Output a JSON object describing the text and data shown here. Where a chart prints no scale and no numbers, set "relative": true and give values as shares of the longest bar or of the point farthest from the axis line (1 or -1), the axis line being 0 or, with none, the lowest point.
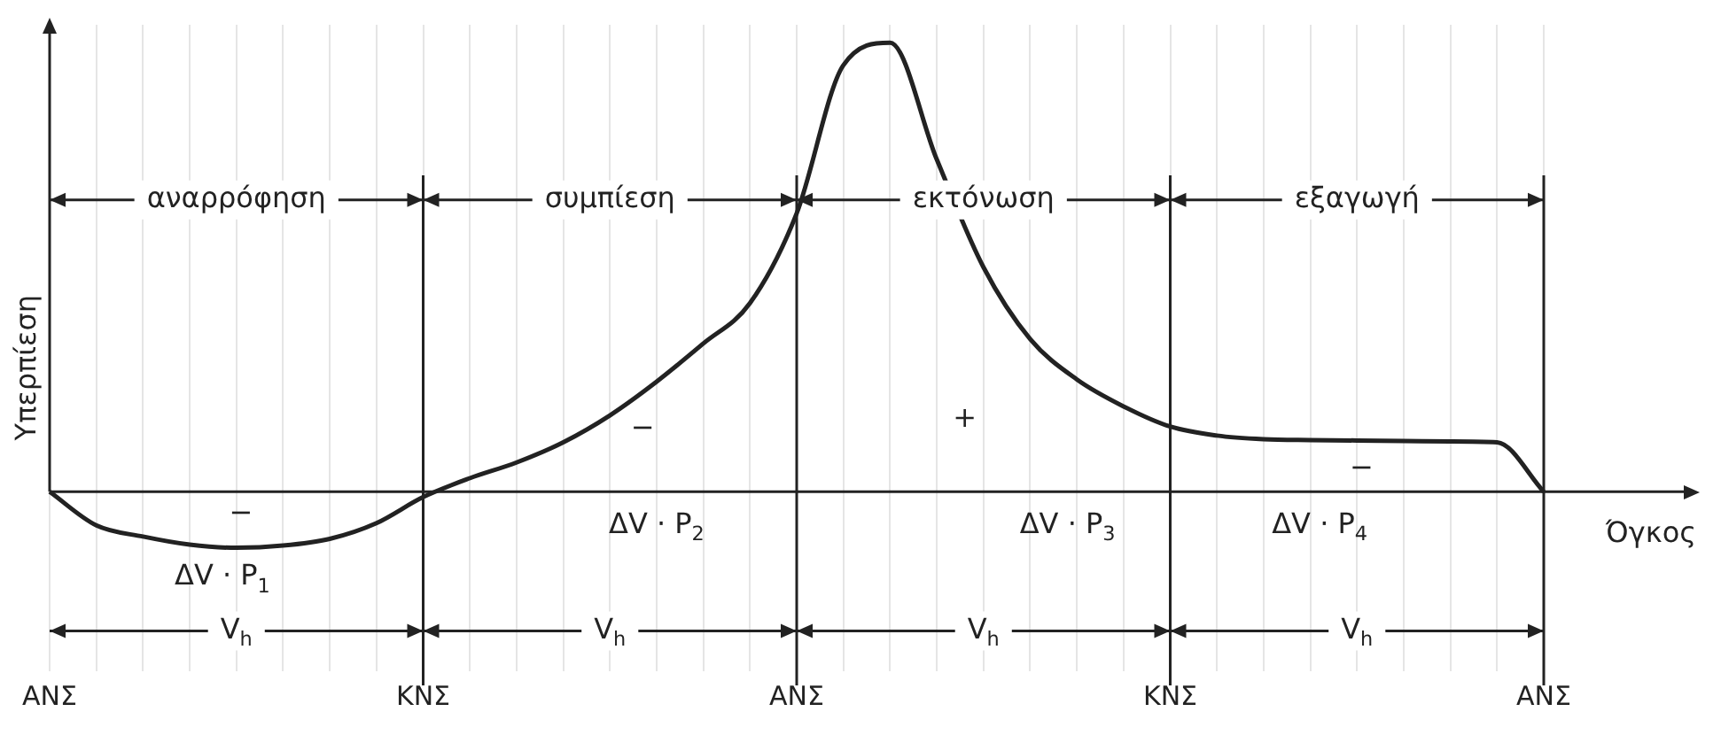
{
  "chart_data": {
    "type": "line",
    "relative": true,
    "xlabel": "Όγκος",
    "ylabel": "Υπερπίεση",
    "categories": [
      "ΑΝΣ",
      null,
      null,
      null,
      null,
      null,
      null,
      null,
      "ΚΝΣ",
      null,
      null,
      null,
      null,
      null,
      null,
      null,
      "ΑΝΣ",
      null,
      null,
      null,
      null,
      null,
      null,
      null,
      "ΚΝΣ",
      null,
      null,
      null,
      null,
      null,
      null,
      null,
      "ΑΝΣ"
    ],
    "series": [
      {
        "color": "#222222",
        "values": [
          0,
          -0.075,
          -0.1,
          -0.118,
          -0.125,
          -0.12,
          -0.105,
          -0.07,
          -0.012,
          0.03,
          0.065,
          0.11,
          0.17,
          0.245,
          0.33,
          0.42,
          0.62,
          0.95,
          1.0,
          0.74,
          0.5,
          0.34,
          0.25,
          0.19,
          0.145,
          0.125,
          0.117,
          0.115,
          0.114,
          0.113,
          0.112,
          0.11,
          0
        ]
      }
    ],
    "annotations": [
      "αναρρόφηση",
      "συμπίεση",
      "εκτόνωση",
      "εξαγωγή",
      "V$_{h}$",
      "V$_{h}$",
      "V$_{h}$",
      "V$_{h}$",
      "ΔV · P$_{1}$",
      "ΔV · P$_{2}$",
      "ΔV · P$_{3}$",
      "ΔV · P$_{4}$",
      "−",
      "−",
      "+",
      "−"
    ],
    "grid": "x",
    "legend": false,
    "marker": "none"
  }
}
